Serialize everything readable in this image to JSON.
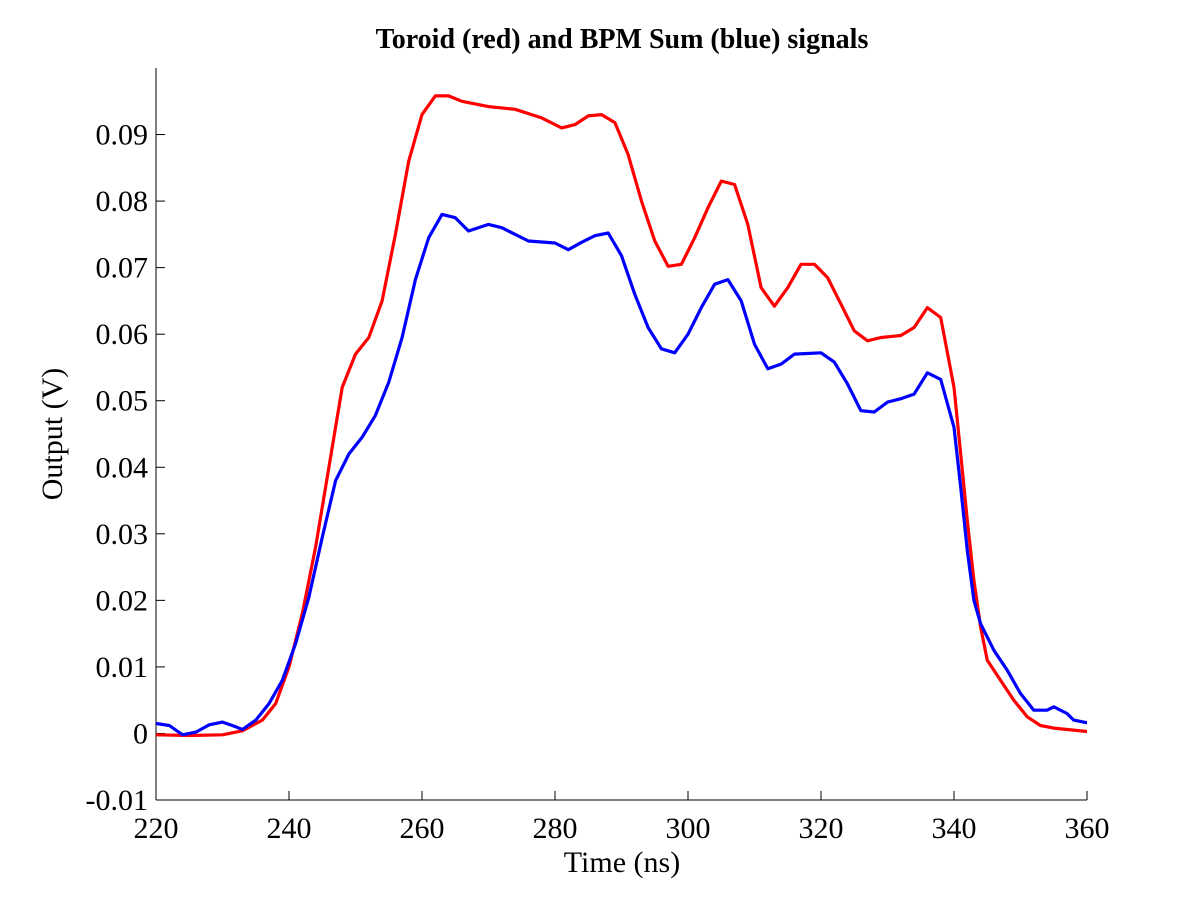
{
  "chart_data": {
    "type": "line",
    "title": "Toroid (red) and BPM Sum (blue) signals",
    "xlabel": "Time (ns)",
    "ylabel": "Output (V)",
    "xlim": [
      220,
      360
    ],
    "ylim": [
      -0.01,
      0.1
    ],
    "xticks": [
      220,
      240,
      260,
      280,
      300,
      320,
      340,
      360
    ],
    "xtick_labels": [
      "220",
      "240",
      "260",
      "280",
      "300",
      "320",
      "340",
      "360"
    ],
    "yticks": [
      -0.01,
      0,
      0.01,
      0.02,
      0.03,
      0.04,
      0.05,
      0.06,
      0.07,
      0.08,
      0.09
    ],
    "ytick_labels": [
      "-0.01",
      "0",
      "0.01",
      "0.02",
      "0.03",
      "0.04",
      "0.05",
      "0.06",
      "0.07",
      "0.08",
      "0.09"
    ],
    "grid": false,
    "legend": "none",
    "series": [
      {
        "color": "#ff0000",
        "points": [
          [
            220,
            -0.0002
          ],
          [
            225,
            -0.0003
          ],
          [
            230,
            -0.0002
          ],
          [
            233,
            0.0004
          ],
          [
            236,
            0.002
          ],
          [
            238,
            0.0045
          ],
          [
            240,
            0.01
          ],
          [
            242,
            0.018
          ],
          [
            244,
            0.028
          ],
          [
            246,
            0.04
          ],
          [
            248,
            0.052
          ],
          [
            250,
            0.057
          ],
          [
            252,
            0.0595
          ],
          [
            254,
            0.065
          ],
          [
            256,
            0.075
          ],
          [
            258,
            0.086
          ],
          [
            260,
            0.093
          ],
          [
            262,
            0.0958
          ],
          [
            264,
            0.0958
          ],
          [
            266,
            0.095
          ],
          [
            270,
            0.0942
          ],
          [
            274,
            0.0938
          ],
          [
            278,
            0.0925
          ],
          [
            281,
            0.091
          ],
          [
            283,
            0.0915
          ],
          [
            285,
            0.0928
          ],
          [
            287,
            0.093
          ],
          [
            289,
            0.0918
          ],
          [
            291,
            0.087
          ],
          [
            293,
            0.08
          ],
          [
            295,
            0.074
          ],
          [
            297,
            0.0702
          ],
          [
            299,
            0.0705
          ],
          [
            301,
            0.0745
          ],
          [
            303,
            0.079
          ],
          [
            305,
            0.083
          ],
          [
            307,
            0.0825
          ],
          [
            309,
            0.0765
          ],
          [
            311,
            0.067
          ],
          [
            313,
            0.0642
          ],
          [
            315,
            0.067
          ],
          [
            317,
            0.0705
          ],
          [
            319,
            0.0705
          ],
          [
            321,
            0.0685
          ],
          [
            323,
            0.0645
          ],
          [
            325,
            0.0605
          ],
          [
            327,
            0.059
          ],
          [
            329,
            0.0595
          ],
          [
            332,
            0.0598
          ],
          [
            334,
            0.061
          ],
          [
            336,
            0.064
          ],
          [
            338,
            0.0625
          ],
          [
            340,
            0.052
          ],
          [
            341,
            0.042
          ],
          [
            342,
            0.032
          ],
          [
            343,
            0.023
          ],
          [
            344,
            0.016
          ],
          [
            345,
            0.011
          ],
          [
            347,
            0.008
          ],
          [
            349,
            0.005
          ],
          [
            351,
            0.0025
          ],
          [
            353,
            0.0012
          ],
          [
            355,
            0.0008
          ],
          [
            360,
            0.0003
          ]
        ]
      },
      {
        "color": "#0000ff",
        "points": [
          [
            220,
            0.0015
          ],
          [
            222,
            0.0012
          ],
          [
            224,
            -0.0002
          ],
          [
            226,
            0.0002
          ],
          [
            228,
            0.0013
          ],
          [
            230,
            0.0017
          ],
          [
            232,
            0.001
          ],
          [
            233,
            0.0006
          ],
          [
            235,
            0.002
          ],
          [
            237,
            0.0045
          ],
          [
            239,
            0.008
          ],
          [
            241,
            0.0135
          ],
          [
            243,
            0.0205
          ],
          [
            245,
            0.0295
          ],
          [
            247,
            0.038
          ],
          [
            249,
            0.042
          ],
          [
            251,
            0.0445
          ],
          [
            253,
            0.0478
          ],
          [
            255,
            0.0528
          ],
          [
            257,
            0.0595
          ],
          [
            259,
            0.0682
          ],
          [
            261,
            0.0745
          ],
          [
            263,
            0.078
          ],
          [
            265,
            0.0775
          ],
          [
            267,
            0.0755
          ],
          [
            270,
            0.0765
          ],
          [
            272,
            0.076
          ],
          [
            276,
            0.074
          ],
          [
            280,
            0.0737
          ],
          [
            282,
            0.0727
          ],
          [
            284,
            0.0738
          ],
          [
            286,
            0.0748
          ],
          [
            288,
            0.0752
          ],
          [
            290,
            0.0718
          ],
          [
            292,
            0.066
          ],
          [
            294,
            0.061
          ],
          [
            296,
            0.0578
          ],
          [
            298,
            0.0572
          ],
          [
            300,
            0.06
          ],
          [
            302,
            0.064
          ],
          [
            304,
            0.0675
          ],
          [
            306,
            0.0682
          ],
          [
            308,
            0.065
          ],
          [
            310,
            0.0585
          ],
          [
            312,
            0.0548
          ],
          [
            314,
            0.0555
          ],
          [
            316,
            0.057
          ],
          [
            320,
            0.0572
          ],
          [
            322,
            0.0558
          ],
          [
            324,
            0.0525
          ],
          [
            326,
            0.0485
          ],
          [
            328,
            0.0483
          ],
          [
            330,
            0.0498
          ],
          [
            332,
            0.0503
          ],
          [
            334,
            0.051
          ],
          [
            336,
            0.0542
          ],
          [
            338,
            0.0532
          ],
          [
            340,
            0.046
          ],
          [
            341,
            0.037
          ],
          [
            342,
            0.0275
          ],
          [
            343,
            0.02
          ],
          [
            344,
            0.0165
          ],
          [
            346,
            0.0125
          ],
          [
            348,
            0.0095
          ],
          [
            350,
            0.006
          ],
          [
            352,
            0.0035
          ],
          [
            354,
            0.0035
          ],
          [
            355,
            0.004
          ],
          [
            357,
            0.003
          ],
          [
            358,
            0.002
          ],
          [
            360,
            0.0016
          ]
        ]
      }
    ]
  }
}
